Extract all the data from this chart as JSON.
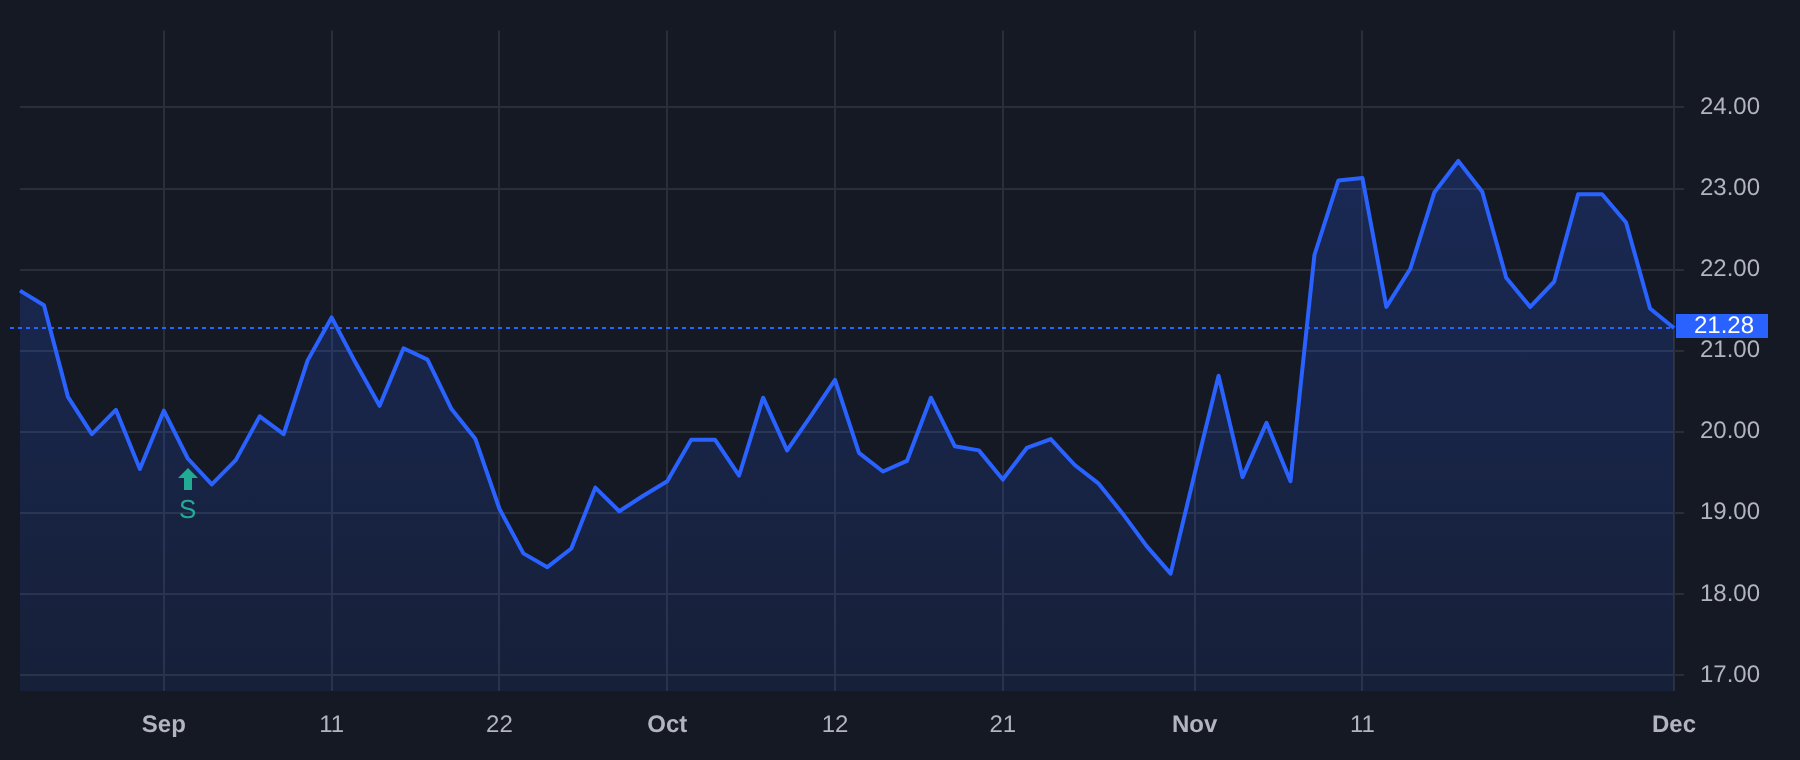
{
  "chart_data": {
    "type": "area",
    "categories": [
      null,
      null,
      null,
      null,
      null,
      null,
      "Sep",
      null,
      null,
      null,
      null,
      null,
      null,
      "11",
      null,
      null,
      null,
      null,
      null,
      null,
      "22",
      null,
      null,
      null,
      null,
      null,
      null,
      "Oct",
      null,
      null,
      null,
      null,
      null,
      null,
      "12",
      null,
      null,
      null,
      null,
      null,
      null,
      "21",
      null,
      null,
      null,
      null,
      null,
      null,
      null,
      "Nov",
      null,
      null,
      null,
      null,
      null,
      null,
      "11",
      null,
      null,
      null,
      null,
      null,
      null,
      null,
      null,
      null,
      null,
      null,
      null,
      "Dec"
    ],
    "series": [
      {
        "color": "#2962ff",
        "values": [
          21.74,
          21.56,
          20.43,
          19.97,
          20.27,
          19.54,
          20.26,
          19.67,
          19.35,
          19.65,
          20.19,
          19.97,
          20.88,
          21.41,
          20.85,
          20.32,
          21.03,
          20.89,
          20.28,
          19.91,
          19.05,
          18.5,
          18.33,
          18.56,
          19.31,
          19.02,
          19.21,
          19.39,
          19.9,
          19.9,
          19.46,
          20.42,
          19.77,
          20.2,
          20.64,
          19.74,
          19.51,
          19.64,
          20.42,
          19.82,
          19.77,
          19.41,
          19.8,
          19.91,
          19.59,
          19.36,
          18.99,
          18.59,
          18.25,
          19.48,
          20.69,
          19.44,
          20.11,
          19.39,
          22.18,
          23.1,
          23.13,
          21.54,
          22.01,
          22.95,
          23.34,
          22.96,
          21.9,
          21.54,
          21.85,
          22.93,
          22.93,
          22.58,
          21.52,
          21.28
        ]
      }
    ],
    "ylim": [
      16.8,
      24.95
    ],
    "yticks": [
      {
        "value": 17,
        "label": "17.00"
      },
      {
        "value": 18,
        "label": "18.00"
      },
      {
        "value": 19,
        "label": "19.00"
      },
      {
        "value": 20,
        "label": "20.00"
      },
      {
        "value": 21,
        "label": "21.00"
      },
      {
        "value": 22,
        "label": "22.00"
      },
      {
        "value": 23,
        "label": "23.00"
      },
      {
        "value": 24,
        "label": "24.00"
      }
    ],
    "ref_lines": [
      {
        "axis": "y",
        "value": 21.28,
        "label": "21.28",
        "color": "#2962ff",
        "line_style": "dotted"
      }
    ],
    "annotations": [
      "S"
    ],
    "grid": true,
    "legend": false,
    "marker": "none",
    "line_style": "solid"
  }
}
